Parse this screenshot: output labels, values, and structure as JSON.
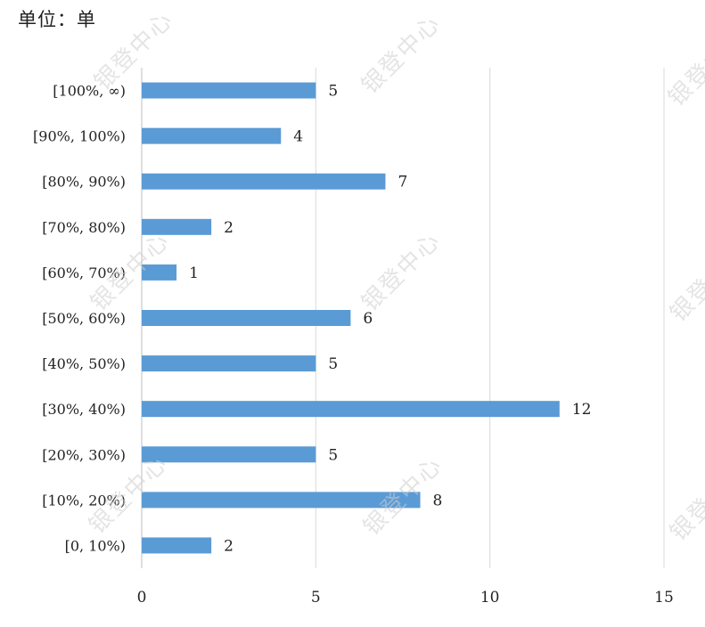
{
  "unit_label": "单位：单",
  "watermark_text": "银登中心",
  "colors": {
    "bar": "#5b9bd5",
    "grid": "#d9d9d9",
    "axis": "#bfbfbf",
    "text": "#222222"
  },
  "chart_data": {
    "type": "bar",
    "orientation": "horizontal",
    "categories": [
      "[100%, ∞)",
      "[90%, 100%)",
      "[80%, 90%)",
      "[70%, 80%)",
      "[60%, 70%)",
      "[50%, 60%)",
      "[40%, 50%)",
      "[30%, 40%)",
      "[20%, 30%)",
      "[10%, 20%)",
      "[0, 10%)"
    ],
    "values": [
      5,
      4,
      7,
      2,
      1,
      6,
      5,
      12,
      5,
      8,
      2
    ],
    "xlim": [
      0,
      15
    ],
    "xticks": [
      0,
      5,
      10,
      15
    ],
    "grid": true,
    "data_labels": true
  }
}
